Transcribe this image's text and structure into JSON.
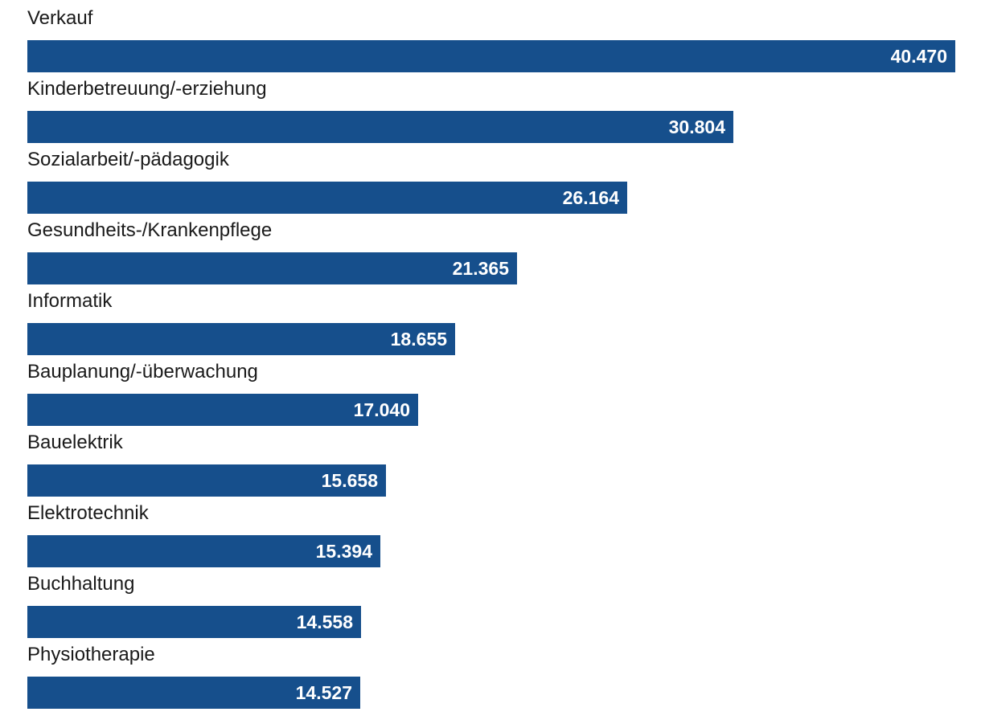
{
  "chart_data": {
    "type": "bar",
    "orientation": "horizontal",
    "categories": [
      "Verkauf",
      "Kinderbetreuung/-erziehung",
      "Sozialarbeit/-pädagogik",
      "Gesundheits-/Krankenpflege",
      "Informatik",
      "Bauplanung/-überwachung",
      "Bauelektrik",
      "Elektrotechnik",
      "Buchhaltung",
      "Physiotherapie"
    ],
    "values": [
      40470,
      30804,
      26164,
      21365,
      18655,
      17040,
      15658,
      15394,
      14558,
      14527
    ],
    "value_labels": [
      "40.470",
      "30.804",
      "26.164",
      "21.365",
      "18.655",
      "17.040",
      "15.658",
      "15.394",
      "14.558",
      "14.527"
    ],
    "bar_color": "#164f8c",
    "label_color": "#ffffff",
    "grid": false,
    "legend": "none"
  }
}
